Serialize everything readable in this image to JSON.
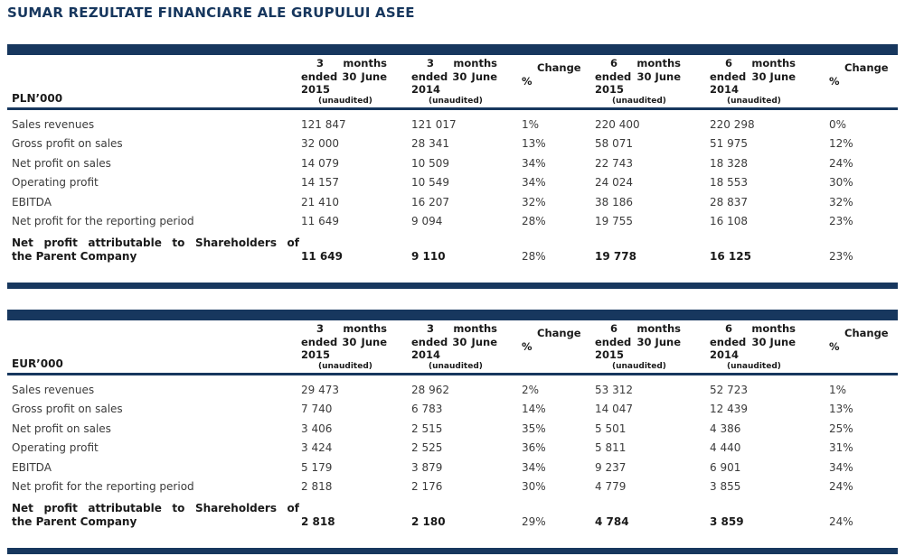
{
  "page_title": "SUMAR REZULTATE FINANCIARE ALE GRUPULUI ASEE",
  "colors": {
    "navy_bar": "#17375e",
    "title_text": "#17375e",
    "body_text": "#3b3b3b",
    "bold_text": "#1a1a1a"
  },
  "tables": [
    {
      "unit_label": "PLN’000",
      "columns": [
        {
          "title_lines": [
            [
              "3",
              "months"
            ],
            [
              "ended",
              "30",
              "June"
            ],
            [
              "2015"
            ]
          ],
          "note": "(unaudited)",
          "change": false
        },
        {
          "title_lines": [
            [
              "3",
              "months"
            ],
            [
              "ended",
              "30",
              "June"
            ],
            [
              "2014"
            ]
          ],
          "note": "(unaudited)",
          "change": false
        },
        {
          "title_lines": [
            [
              "Change"
            ],
            [
              "%"
            ]
          ],
          "note": "",
          "change": true
        },
        {
          "title_lines": [
            [
              "6",
              "months"
            ],
            [
              "ended",
              "30 June"
            ],
            [
              "2015"
            ]
          ],
          "note": "(unaudited)",
          "change": false
        },
        {
          "title_lines": [
            [
              "6",
              "months"
            ],
            [
              "ended",
              "30 June"
            ],
            [
              "2014"
            ]
          ],
          "note": "(unaudited)",
          "change": false
        },
        {
          "title_lines": [
            [
              "Change"
            ],
            [
              "%"
            ]
          ],
          "note": "",
          "change": true
        }
      ],
      "rows": [
        {
          "label_lines": [
            "Sales revenues"
          ],
          "bold": false,
          "values": [
            "121 847",
            "121 017",
            "1%",
            "220 400",
            "220 298",
            "0%"
          ]
        },
        {
          "label_lines": [
            "Gross profit on sales"
          ],
          "bold": false,
          "values": [
            "32 000",
            "28 341",
            "13%",
            "58 071",
            "51 975",
            "12%"
          ]
        },
        {
          "label_lines": [
            "Net profit on sales"
          ],
          "bold": false,
          "values": [
            "14 079",
            "10 509",
            "34%",
            "22 743",
            "18 328",
            "24%"
          ]
        },
        {
          "label_lines": [
            "Operating profit"
          ],
          "bold": false,
          "values": [
            "14 157",
            "10 549",
            "34%",
            "24 024",
            "18 553",
            "30%"
          ]
        },
        {
          "label_lines": [
            "EBITDA"
          ],
          "bold": false,
          "values": [
            "21 410",
            "16 207",
            "32%",
            "38 186",
            "28 837",
            "32%"
          ]
        },
        {
          "label_lines": [
            "Net profit for the reporting period"
          ],
          "bold": false,
          "values": [
            "11 649",
            "9 094",
            "28%",
            "19 755",
            "16 108",
            "23%"
          ]
        },
        {
          "label_lines": [
            "Net profit attributable to Shareholders of",
            "the Parent Company"
          ],
          "bold": true,
          "values": [
            "11 649",
            "9 110",
            "28%",
            "19 778",
            "16 125",
            "23%"
          ]
        }
      ]
    },
    {
      "unit_label": "EUR’000",
      "columns": [
        {
          "title_lines": [
            [
              "3",
              "months"
            ],
            [
              "ended",
              "30",
              "June"
            ],
            [
              "2015"
            ]
          ],
          "note": "(unaudited)",
          "change": false
        },
        {
          "title_lines": [
            [
              "3",
              "months"
            ],
            [
              "ended",
              "30",
              "June"
            ],
            [
              "2014"
            ]
          ],
          "note": "(unaudited)",
          "change": false
        },
        {
          "title_lines": [
            [
              "Change"
            ],
            [
              "%"
            ]
          ],
          "note": "",
          "change": true
        },
        {
          "title_lines": [
            [
              "6",
              "months"
            ],
            [
              "ended",
              "30 June"
            ],
            [
              "2015"
            ]
          ],
          "note": "(unaudited)",
          "change": false
        },
        {
          "title_lines": [
            [
              "6",
              "months"
            ],
            [
              "ended",
              "30 June"
            ],
            [
              "2014"
            ]
          ],
          "note": "(unaudited)",
          "change": false
        },
        {
          "title_lines": [
            [
              "Change"
            ],
            [
              "%"
            ]
          ],
          "note": "",
          "change": true
        }
      ],
      "rows": [
        {
          "label_lines": [
            "Sales revenues"
          ],
          "bold": false,
          "values": [
            "29 473",
            "28 962",
            "2%",
            "53 312",
            "52 723",
            "1%"
          ]
        },
        {
          "label_lines": [
            "Gross profit on sales"
          ],
          "bold": false,
          "values": [
            "7 740",
            "6 783",
            "14%",
            "14 047",
            "12 439",
            "13%"
          ]
        },
        {
          "label_lines": [
            "Net profit on sales"
          ],
          "bold": false,
          "values": [
            "3 406",
            "2 515",
            "35%",
            "5 501",
            "4 386",
            "25%"
          ]
        },
        {
          "label_lines": [
            "Operating profit"
          ],
          "bold": false,
          "values": [
            "3 424",
            "2 525",
            "36%",
            "5 811",
            "4 440",
            "31%"
          ]
        },
        {
          "label_lines": [
            "EBITDA"
          ],
          "bold": false,
          "values": [
            "5 179",
            "3 879",
            "34%",
            "9 237",
            "6 901",
            "34%"
          ]
        },
        {
          "label_lines": [
            "Net profit for the reporting period"
          ],
          "bold": false,
          "values": [
            "2 818",
            "2 176",
            "30%",
            "4 779",
            "3 855",
            "24%"
          ]
        },
        {
          "label_lines": [
            "Net profit attributable to Shareholders of",
            "the Parent Company"
          ],
          "bold": true,
          "values": [
            "2 818",
            "2 180",
            "29%",
            "4 784",
            "3 859",
            "24%"
          ]
        }
      ]
    }
  ]
}
